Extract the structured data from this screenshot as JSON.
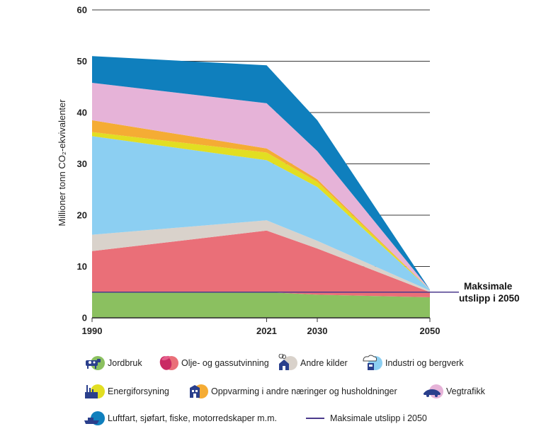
{
  "chart_data": {
    "type": "area",
    "stacked": true,
    "x": [
      1990,
      2021,
      2030,
      2050
    ],
    "ylabel": "Millioner tonn CO₂-ekvivalenter",
    "ylim": [
      0,
      60
    ],
    "yticks": [
      0,
      10,
      20,
      30,
      40,
      50,
      60
    ],
    "grid": "horizontal",
    "series": [
      {
        "name": "Jordbruk",
        "color": "#8bc060",
        "values": [
          5,
          5,
          4.5,
          4
        ]
      },
      {
        "name": "Olje- og gassutvinning",
        "color": "#ea6f78",
        "values": [
          8,
          12,
          9,
          1
        ]
      },
      {
        "name": "Andre kilder",
        "color": "#d9d2cb",
        "values": [
          3.2,
          2,
          1.5,
          0.3
        ]
      },
      {
        "name": "Industri og bergverk",
        "color": "#8ccff2",
        "values": [
          19.2,
          11.7,
          10.5,
          0.2
        ]
      },
      {
        "name": "Energiforsyning",
        "color": "#e2de22",
        "values": [
          0.8,
          1.5,
          1,
          0
        ]
      },
      {
        "name": "Oppvarming i andre næringer og husholdninger",
        "color": "#f5ac34",
        "values": [
          2.3,
          0.8,
          0.5,
          0
        ]
      },
      {
        "name": "Vegtrafikk",
        "color": "#e6b3d8",
        "values": [
          7.3,
          8.8,
          5.5,
          0
        ]
      },
      {
        "name": "Luftfart, sjøfart, fiske, motorredskaper m.m.",
        "color": "#0f7fbd",
        "values": [
          5.2,
          7.4,
          6,
          0
        ]
      }
    ],
    "reference_line": {
      "name": "Maksimale utslipp i 2050",
      "value": 5,
      "color": "#4b3a8c"
    },
    "annotation": [
      "Maksimale",
      "utslipp i 2050"
    ]
  },
  "legend": {
    "jordbruk": "Jordbruk",
    "olje": "Olje- og gassutvinning",
    "andre": "Andre kilder",
    "industri": "Industri og bergverk",
    "energi": "Energiforsyning",
    "oppvarming": "Oppvarming i andre næringer og husholdninger",
    "vegtrafikk": "Vegtrafikk",
    "luftfart": "Luftfart, sjøfart, fiske, motorredskaper m.m.",
    "maks": "Maksimale utslipp i 2050"
  },
  "icons": {
    "jordbruk": "cow-icon",
    "olje": "oil-barrel-icon",
    "andre": "house-smoke-icon",
    "industri": "factory-cloud-icon",
    "energi": "power-plant-icon",
    "oppvarming": "building-heating-icon",
    "vegtrafikk": "car-icon",
    "luftfart": "ship-icon"
  }
}
